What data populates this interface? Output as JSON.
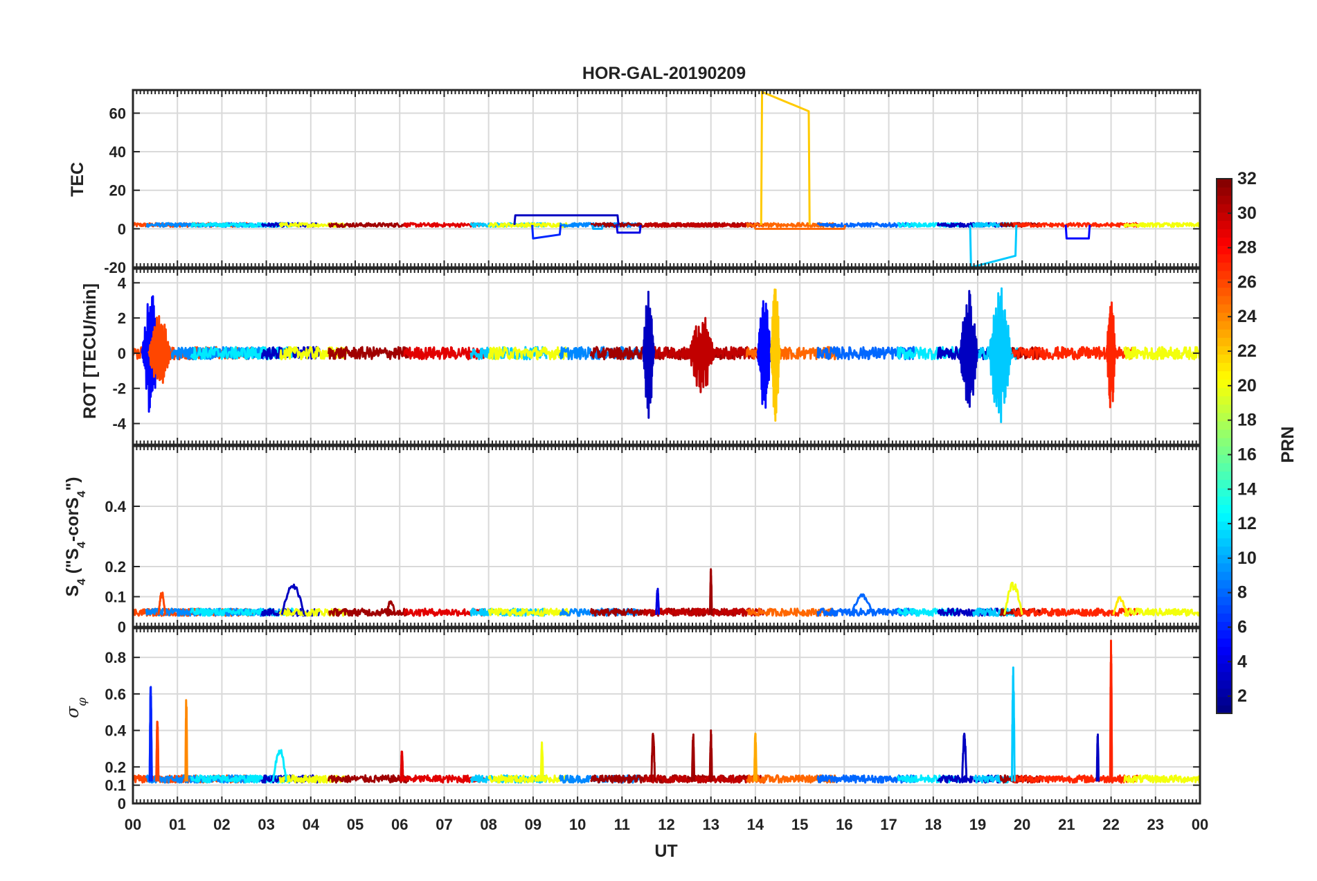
{
  "chart_data": {
    "type": "line",
    "title": "HOR-GAL-20190209",
    "xlabel": "UT",
    "x_range_hours": [
      0,
      24
    ],
    "x_ticks": [
      "00",
      "01",
      "02",
      "03",
      "04",
      "05",
      "06",
      "07",
      "08",
      "09",
      "10",
      "11",
      "12",
      "13",
      "14",
      "15",
      "16",
      "17",
      "18",
      "19",
      "20",
      "21",
      "22",
      "23",
      "00"
    ],
    "grid": true,
    "panels": [
      {
        "id": "tec",
        "ylabel": "TEC",
        "ylim": [
          -20,
          72
        ],
        "y_ticks": [
          -20,
          0,
          20,
          40,
          60
        ],
        "y_tick_labels": [
          "-20",
          "0",
          "20",
          "40",
          "60"
        ],
        "baseline": 2,
        "noise": 1.0,
        "events": [
          {
            "prn": 22,
            "t0": 14.15,
            "t1": 15.2,
            "v0": 71,
            "v1": 61
          },
          {
            "prn": 11,
            "t0": 18.85,
            "t1": 19.85,
            "v0": -20,
            "v1": -14
          },
          {
            "prn": 6,
            "t0": 9.0,
            "t1": 9.6,
            "v0": -5,
            "v1": -3
          },
          {
            "prn": 4,
            "t0": 10.9,
            "t1": 11.4,
            "v0": -2,
            "v1": -2
          },
          {
            "prn": 5,
            "t0": 21.0,
            "t1": 21.5,
            "v0": -5,
            "v1": -5
          },
          {
            "prn": 3,
            "t0": 8.6,
            "t1": 10.9,
            "v0": 7,
            "v1": 7
          },
          {
            "prn": 10,
            "t0": 10.35,
            "t1": 10.55,
            "v0": 0,
            "v1": 0
          },
          {
            "prn": 25,
            "t0": 14.0,
            "t1": 16.0,
            "v0": 0,
            "v1": 0
          }
        ]
      },
      {
        "id": "rot",
        "ylabel": "ROT [TECU/min]",
        "ylim": [
          -5.2,
          4.8
        ],
        "y_ticks": [
          -4,
          -2,
          0,
          2,
          4
        ],
        "y_tick_labels": [
          "-4",
          "-2",
          "0",
          "2",
          "4"
        ],
        "baseline": 0,
        "noise": 0.35,
        "events": [
          {
            "prn": 5,
            "t": 0.4,
            "amp": 3.6,
            "w": 0.4
          },
          {
            "prn": 26,
            "t": 0.6,
            "amp": 2.2,
            "w": 0.5
          },
          {
            "prn": 3,
            "t": 11.6,
            "amp": 3.8,
            "w": 0.25
          },
          {
            "prn": 5,
            "t": 14.2,
            "amp": 3.4,
            "w": 0.3
          },
          {
            "prn": 22,
            "t": 14.45,
            "amp": 4.0,
            "w": 0.2
          },
          {
            "prn": 3,
            "t": 18.8,
            "amp": 3.6,
            "w": 0.4
          },
          {
            "prn": 11,
            "t": 19.5,
            "amp": 4.1,
            "w": 0.5
          },
          {
            "prn": 27,
            "t": 22.0,
            "amp": 3.4,
            "w": 0.2
          },
          {
            "prn": 30,
            "t": 12.8,
            "amp": 2.3,
            "w": 0.6
          }
        ]
      },
      {
        "id": "s4",
        "ylabel": "S4 (\"S4-corS4\")",
        "ylim": [
          0,
          0.6
        ],
        "y_ticks": [
          0,
          0.1,
          0.2,
          0.4
        ],
        "y_tick_labels": [
          "0",
          "0.1",
          "0.2",
          "0.4"
        ],
        "baseline": 0.04,
        "noise": 0.012,
        "events": [
          {
            "prn": 3,
            "t": 3.6,
            "amp": 0.15,
            "w": 0.5
          },
          {
            "prn": 31,
            "t": 13.0,
            "amp": 0.2,
            "w": 0.04
          },
          {
            "prn": 20,
            "t": 19.8,
            "amp": 0.15,
            "w": 0.4
          },
          {
            "prn": 26,
            "t": 0.65,
            "amp": 0.12,
            "w": 0.15
          },
          {
            "prn": 8,
            "t": 16.4,
            "amp": 0.11,
            "w": 0.5
          },
          {
            "prn": 4,
            "t": 11.8,
            "amp": 0.13,
            "w": 0.06
          },
          {
            "prn": 31,
            "t": 5.8,
            "amp": 0.09,
            "w": 0.2
          },
          {
            "prn": 21,
            "t": 22.2,
            "amp": 0.1,
            "w": 0.3
          }
        ]
      },
      {
        "id": "sigma",
        "ylabel": "σφ",
        "ylim": [
          0,
          0.96
        ],
        "y_ticks": [
          0,
          0.1,
          0.2,
          0.4,
          0.6,
          0.8
        ],
        "y_tick_labels": [
          "0",
          "0.1",
          "0.2",
          "0.4",
          "0.6",
          "0.8"
        ],
        "baseline": 0.12,
        "noise": 0.02,
        "events": [
          {
            "prn": 6,
            "t": 0.4,
            "amp": 0.66,
            "w": 0.05
          },
          {
            "prn": 26,
            "t": 0.55,
            "amp": 0.48,
            "w": 0.05
          },
          {
            "prn": 24,
            "t": 1.2,
            "amp": 0.6,
            "w": 0.04
          },
          {
            "prn": 12,
            "t": 3.3,
            "amp": 0.31,
            "w": 0.3
          },
          {
            "prn": 29,
            "t": 6.05,
            "amp": 0.3,
            "w": 0.05
          },
          {
            "prn": 20,
            "t": 9.2,
            "amp": 0.34,
            "w": 0.05
          },
          {
            "prn": 31,
            "t": 11.7,
            "amp": 0.4,
            "w": 0.08
          },
          {
            "prn": 31,
            "t": 12.6,
            "amp": 0.4,
            "w": 0.05
          },
          {
            "prn": 31,
            "t": 13.0,
            "amp": 0.4,
            "w": 0.05
          },
          {
            "prn": 23,
            "t": 14.0,
            "amp": 0.4,
            "w": 0.05
          },
          {
            "prn": 3,
            "t": 18.7,
            "amp": 0.4,
            "w": 0.1
          },
          {
            "prn": 11,
            "t": 19.8,
            "amp": 0.75,
            "w": 0.06
          },
          {
            "prn": 27,
            "t": 22.0,
            "amp": 0.91,
            "w": 0.04
          },
          {
            "prn": 3,
            "t": 21.7,
            "amp": 0.39,
            "w": 0.04
          }
        ]
      }
    ],
    "colorbar": {
      "label": "PRN",
      "range": [
        1,
        32
      ],
      "ticks": [
        2,
        4,
        6,
        8,
        10,
        12,
        14,
        16,
        18,
        20,
        22,
        24,
        26,
        28,
        30,
        32
      ],
      "tick_labels": [
        "2",
        "4",
        "6",
        "8",
        "10",
        "12",
        "14",
        "16",
        "18",
        "20",
        "22",
        "24",
        "26",
        "28",
        "30",
        "32"
      ],
      "colormap": "jet"
    }
  }
}
